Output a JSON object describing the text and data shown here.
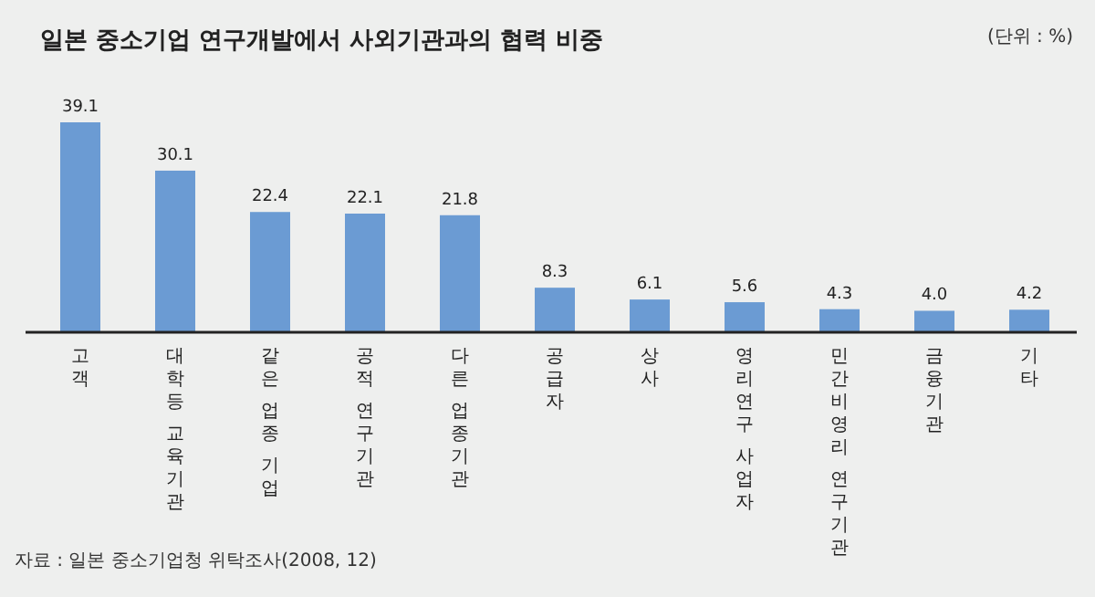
{
  "chart_data": {
    "type": "bar",
    "title": "일본 중소기업 연구개발에서 사외기관과의 협력 비중",
    "categories": [
      "고객",
      "대학등 교육기관",
      "같은 업종 기업",
      "공적 연구기관",
      "다른 업종기관",
      "공급자",
      "상사",
      "영리연구 사업자",
      "민간비영리 연구기관",
      "금융기관",
      "기타"
    ],
    "values": [
      39.1,
      30.1,
      22.4,
      22.1,
      21.8,
      8.3,
      6.1,
      5.6,
      4.3,
      4.0,
      4.2
    ],
    "color": "#6b9bd3",
    "value_labels": [
      "39.1",
      "30.1",
      "22.4",
      "22.1",
      "21.8",
      "8.3",
      "6.1",
      "5.6",
      "4.3",
      "4.0",
      "4.2"
    ],
    "annotations": [
      "(단위 : %)",
      "자료 : 일본 중소기업청 위탁조사(2008, 12)"
    ]
  }
}
